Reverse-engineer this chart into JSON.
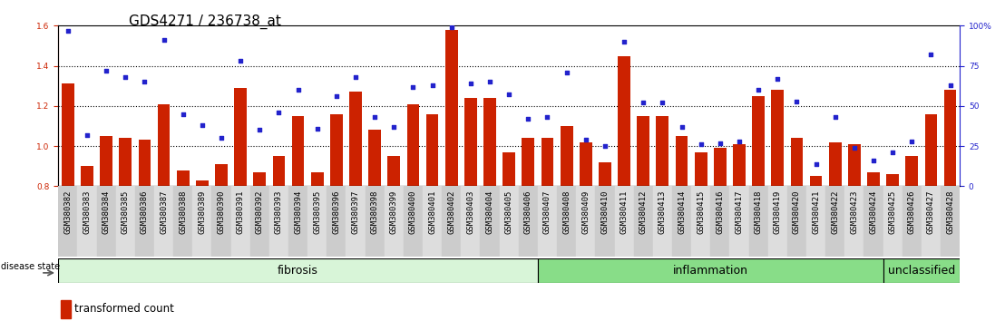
{
  "title": "GDS4271 / 236738_at",
  "samples": [
    "GSM380382",
    "GSM380383",
    "GSM380384",
    "GSM380385",
    "GSM380386",
    "GSM380387",
    "GSM380388",
    "GSM380389",
    "GSM380390",
    "GSM380391",
    "GSM380392",
    "GSM380393",
    "GSM380394",
    "GSM380395",
    "GSM380396",
    "GSM380397",
    "GSM380398",
    "GSM380399",
    "GSM380400",
    "GSM380401",
    "GSM380402",
    "GSM380403",
    "GSM380404",
    "GSM380405",
    "GSM380406",
    "GSM380407",
    "GSM380408",
    "GSM380409",
    "GSM380410",
    "GSM380411",
    "GSM380412",
    "GSM380413",
    "GSM380414",
    "GSM380415",
    "GSM380416",
    "GSM380417",
    "GSM380418",
    "GSM380419",
    "GSM380420",
    "GSM380421",
    "GSM380422",
    "GSM380423",
    "GSM380424",
    "GSM380425",
    "GSM380426",
    "GSM380427",
    "GSM380428"
  ],
  "bar_values": [
    1.31,
    0.9,
    1.05,
    1.04,
    1.03,
    1.21,
    0.88,
    0.83,
    0.91,
    1.29,
    0.87,
    0.95,
    1.15,
    0.87,
    1.16,
    1.27,
    1.08,
    0.95,
    1.21,
    1.16,
    1.58,
    1.24,
    1.24,
    0.97,
    1.04,
    1.04,
    1.1,
    1.02,
    0.92,
    1.45,
    1.15,
    1.15,
    1.05,
    0.97,
    0.99,
    1.01,
    1.25,
    1.28,
    1.04,
    0.85,
    1.02,
    1.01,
    0.87,
    0.86,
    0.95,
    1.16,
    1.28
  ],
  "dot_values": [
    97,
    32,
    72,
    68,
    65,
    91,
    45,
    38,
    30,
    78,
    35,
    46,
    60,
    36,
    56,
    68,
    43,
    37,
    62,
    63,
    99,
    64,
    65,
    57,
    42,
    43,
    71,
    29,
    25,
    90,
    52,
    52,
    37,
    26,
    27,
    28,
    60,
    67,
    53,
    14,
    43,
    24,
    16,
    21,
    28,
    82,
    63
  ],
  "groups": [
    {
      "label": "fibrosis",
      "start": 0,
      "end": 24,
      "color": "#d8f5d8"
    },
    {
      "label": "inflammation",
      "start": 25,
      "end": 42,
      "color": "#88dd88"
    },
    {
      "label": "unclassified",
      "start": 43,
      "end": 46,
      "color": "#88dd88"
    }
  ],
  "left_ylim": [
    0.8,
    1.6
  ],
  "left_yticks": [
    0.8,
    1.0,
    1.2,
    1.4,
    1.6
  ],
  "right_yticks": [
    0,
    25,
    50,
    75,
    100
  ],
  "right_labels": [
    "0",
    "25",
    "50",
    "75",
    "100%"
  ],
  "bar_color": "#cc2200",
  "dot_color": "#2222cc",
  "tick_fontsize": 6.5,
  "label_fontsize": 9,
  "title_fontsize": 11,
  "tick_bg_even": "#cccccc",
  "tick_bg_odd": "#dddddd"
}
